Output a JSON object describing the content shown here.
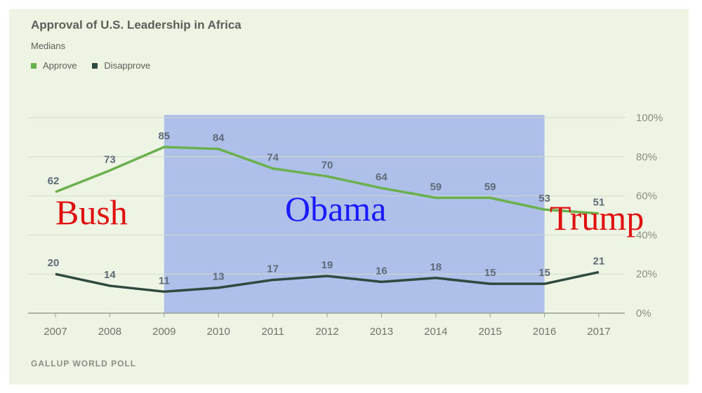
{
  "chart_data": {
    "type": "line",
    "title": "Approval of U.S. Leadership in Africa",
    "subtitle": "Medians",
    "x": [
      "2007",
      "2008",
      "2009",
      "2010",
      "2011",
      "2012",
      "2013",
      "2014",
      "2015",
      "2016",
      "2017"
    ],
    "series": [
      {
        "name": "Approve",
        "color": "#6ab04c",
        "values": [
          62,
          73,
          85,
          84,
          74,
          70,
          64,
          59,
          59,
          53,
          51
        ]
      },
      {
        "name": "Disapprove",
        "color": "#2e4a3e",
        "values": [
          20,
          14,
          11,
          13,
          17,
          19,
          16,
          18,
          15,
          15,
          21
        ]
      }
    ],
    "ylim": [
      0,
      100
    ],
    "yticks": [
      "0%",
      "20%",
      "40%",
      "60%",
      "80%",
      "100%"
    ],
    "annotations": [
      {
        "text": "Bush",
        "color": "#e01010"
      },
      {
        "text": "Obama",
        "color": "#1a1aff"
      },
      {
        "text": "Trump",
        "color": "#e01010"
      }
    ],
    "shaded_range": {
      "from": "2009",
      "to": "2016",
      "color": "#aebfea"
    },
    "source": "GALLUP WORLD POLL"
  }
}
